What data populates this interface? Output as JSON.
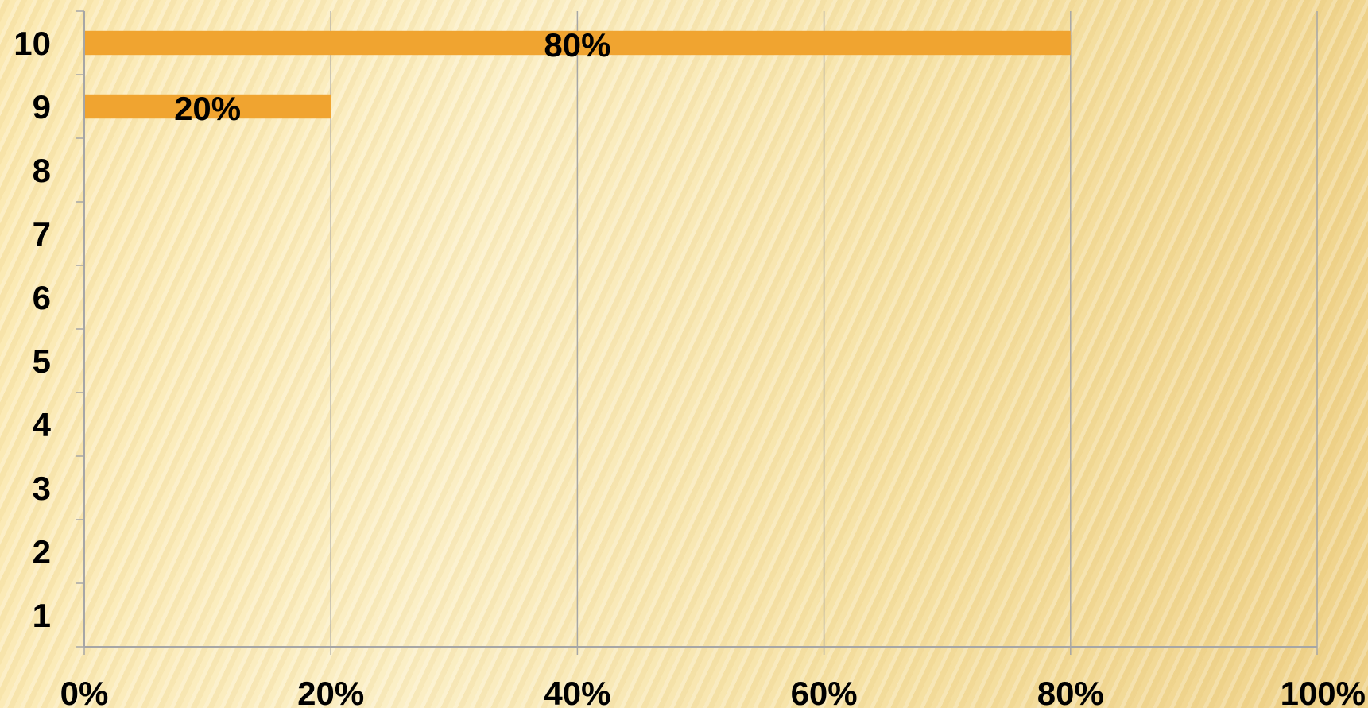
{
  "chart_data": {
    "type": "bar",
    "orientation": "horizontal",
    "categories": [
      "1",
      "2",
      "3",
      "4",
      "5",
      "6",
      "7",
      "8",
      "9",
      "10"
    ],
    "values": [
      0,
      0,
      0,
      0,
      0,
      0,
      0,
      0,
      20,
      80
    ],
    "data_labels": [
      "",
      "",
      "",
      "",
      "",
      "",
      "",
      "",
      "20%",
      "80%"
    ],
    "xlim": [
      0,
      100
    ],
    "x_ticks": [
      "0%",
      "20%",
      "40%",
      "60%",
      "80%",
      "100%"
    ],
    "x_tick_values": [
      0,
      20,
      40,
      60,
      80,
      100
    ],
    "grid": "vertical",
    "legend": "none",
    "bar_color": "#F0A430",
    "grid_color": "#A6A6A6",
    "title": "",
    "xlabel": "",
    "ylabel": ""
  }
}
